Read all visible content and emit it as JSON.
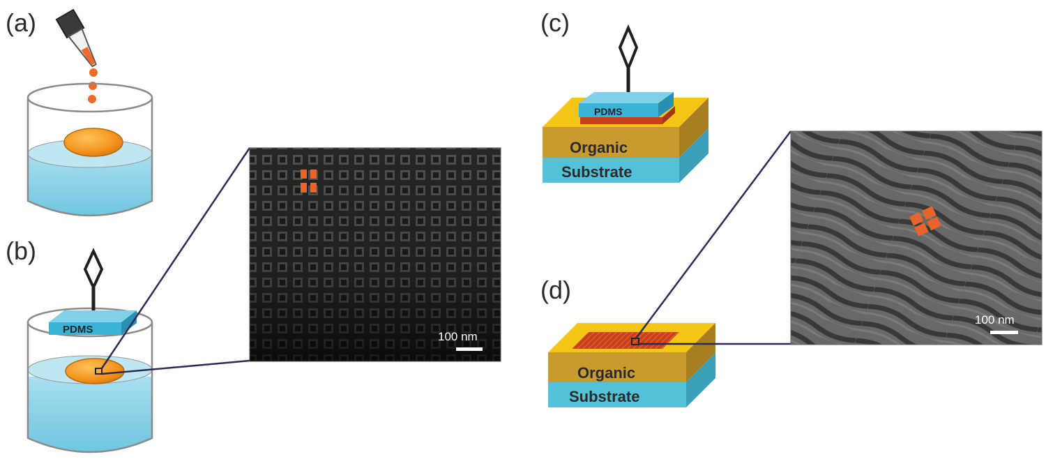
{
  "panels": {
    "a": {
      "label": "(a)"
    },
    "b": {
      "label": "(b)",
      "stamp_label": "PDMS"
    },
    "c": {
      "label": "(c)",
      "stamp_label": "PDMS",
      "layer_top": "Organic",
      "layer_bottom": "Substrate"
    },
    "d": {
      "label": "(d)",
      "layer_top": "Organic",
      "layer_bottom": "Substrate"
    }
  },
  "micrographs": {
    "left": {
      "scale_bar": "100 nm"
    },
    "right": {
      "scale_bar": "100 nm"
    }
  },
  "colors": {
    "water": "#8fd3e6",
    "glass_rim": "#cfe8ef",
    "film": "#f39a1e",
    "droplet": "#ee6a2a",
    "pdms": "#3ab4d6",
    "organic": "#c99a2e",
    "substrate": "#53c1d8",
    "gold_top": "#f5c518",
    "nanocube": "#e8642a",
    "zoom_line": "#2b2a55"
  }
}
